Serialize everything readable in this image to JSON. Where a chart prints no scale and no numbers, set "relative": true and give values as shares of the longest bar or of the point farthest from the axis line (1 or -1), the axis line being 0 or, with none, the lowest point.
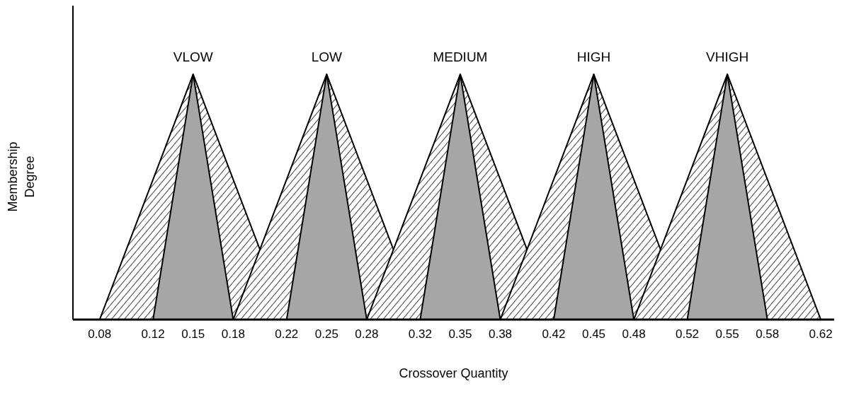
{
  "chart_data": {
    "type": "area",
    "relative": true,
    "xlabel": "Crossover Quantity",
    "ylabel": "Membership Degree",
    "xlim": [
      0.06,
      0.63
    ],
    "xticks": [
      0.08,
      0.12,
      0.15,
      0.18,
      0.22,
      0.25,
      0.28,
      0.32,
      0.35,
      0.38,
      0.42,
      0.45,
      0.48,
      0.52,
      0.55,
      0.58,
      0.62
    ],
    "grid": false,
    "legend": false,
    "series": [
      {
        "name": "VLOW",
        "color": "#404040",
        "x": [
          0.08,
          0.15,
          0.22
        ],
        "values": [
          0,
          1,
          0
        ]
      },
      {
        "color": "#a6a6a6",
        "x": [
          0.12,
          0.15,
          0.18
        ],
        "values": [
          0,
          1,
          0
        ]
      },
      {
        "name": "LOW",
        "color": "#404040",
        "x": [
          0.18,
          0.25,
          0.32
        ],
        "values": [
          0,
          1,
          0
        ]
      },
      {
        "color": "#a6a6a6",
        "x": [
          0.22,
          0.25,
          0.28
        ],
        "values": [
          0,
          1,
          0
        ]
      },
      {
        "name": "MEDIUM",
        "color": "#404040",
        "x": [
          0.28,
          0.35,
          0.42
        ],
        "values": [
          0,
          1,
          0
        ]
      },
      {
        "color": "#a6a6a6",
        "x": [
          0.32,
          0.35,
          0.38
        ],
        "values": [
          0,
          1,
          0
        ]
      },
      {
        "name": "HIGH",
        "color": "#404040",
        "x": [
          0.38,
          0.45,
          0.52
        ],
        "values": [
          0,
          1,
          0
        ]
      },
      {
        "color": "#a6a6a6",
        "x": [
          0.42,
          0.45,
          0.48
        ],
        "values": [
          0,
          1,
          0
        ]
      },
      {
        "name": "VHIGH",
        "color": "#404040",
        "x": [
          0.48,
          0.55,
          0.62
        ],
        "values": [
          0,
          1,
          0
        ]
      },
      {
        "color": "#a6a6a6",
        "x": [
          0.52,
          0.55,
          0.58
        ],
        "values": [
          0,
          1,
          0
        ]
      }
    ]
  }
}
